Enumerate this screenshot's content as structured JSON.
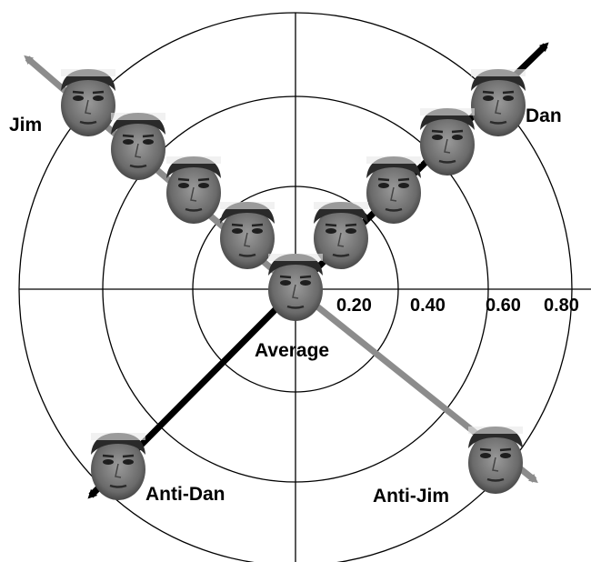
{
  "labels": {
    "jim": "Jim",
    "dan": "Dan",
    "average": "Average",
    "anti_dan": "Anti-Dan",
    "anti_jim": "Anti-Jim"
  },
  "axis_ticks": [
    "0.20",
    "0.40",
    "0.60",
    "0.80"
  ]
}
